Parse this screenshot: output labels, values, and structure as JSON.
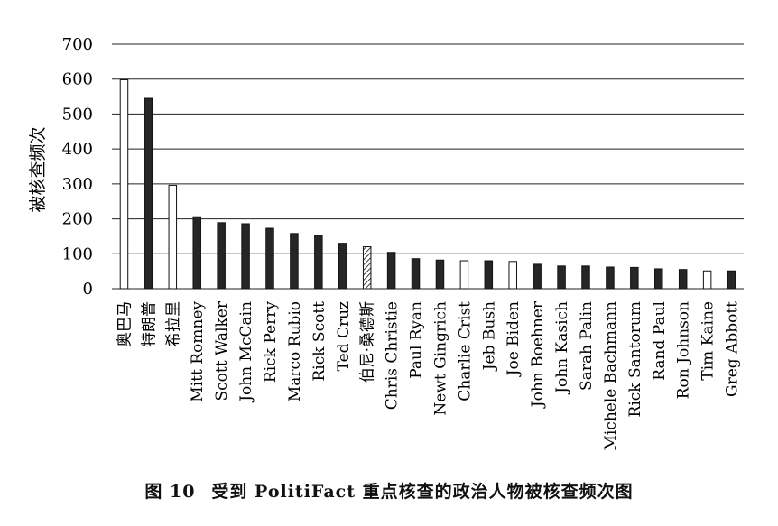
{
  "chart_data": {
    "type": "bar",
    "ylabel": "被核查频次",
    "ylim": [
      0,
      700
    ],
    "yticks": [
      0,
      100,
      200,
      300,
      400,
      500,
      600,
      700
    ],
    "grid": true,
    "categories": [
      "奥巴马",
      "特朗普",
      "希拉里",
      "Mitt Romney",
      "Scott Walker",
      "John McCain",
      "Rick Perry",
      "Marco Rubio",
      "Rick Scott",
      "Ted Cruz",
      "伯尼·桑德斯",
      "Chris Christie",
      "Paul Ryan",
      "Newt Gingrich",
      "Charlie Crist",
      "Jeb Bush",
      "Joe Biden",
      "John Boehner",
      "John Kasich",
      "Sarah Palin",
      "Michele Bachmann",
      "Rick Santorum",
      "Rand Paul",
      "Ron Johnson",
      "Tim Kaine",
      "Greg Abbott"
    ],
    "values": [
      598,
      545,
      296,
      206,
      189,
      186,
      173,
      158,
      153,
      130,
      120,
      104,
      86,
      82,
      80,
      80,
      78,
      70,
      65,
      65,
      62,
      61,
      57,
      55,
      51,
      51
    ],
    "fills": [
      "white",
      "dark",
      "white",
      "dark",
      "dark",
      "dark",
      "dark",
      "dark",
      "dark",
      "dark",
      "hatched",
      "dark",
      "dark",
      "dark",
      "white",
      "dark",
      "white",
      "dark",
      "dark",
      "dark",
      "dark",
      "dark",
      "dark",
      "dark",
      "white",
      "dark"
    ]
  },
  "colors": {
    "dark": "#262626",
    "white": "#ffffff",
    "outline": "#111111",
    "grid": "#222222"
  },
  "caption": {
    "number": "图 10",
    "text": "受到 PolitiFact 重点核查的政治人物被核查频次图"
  }
}
